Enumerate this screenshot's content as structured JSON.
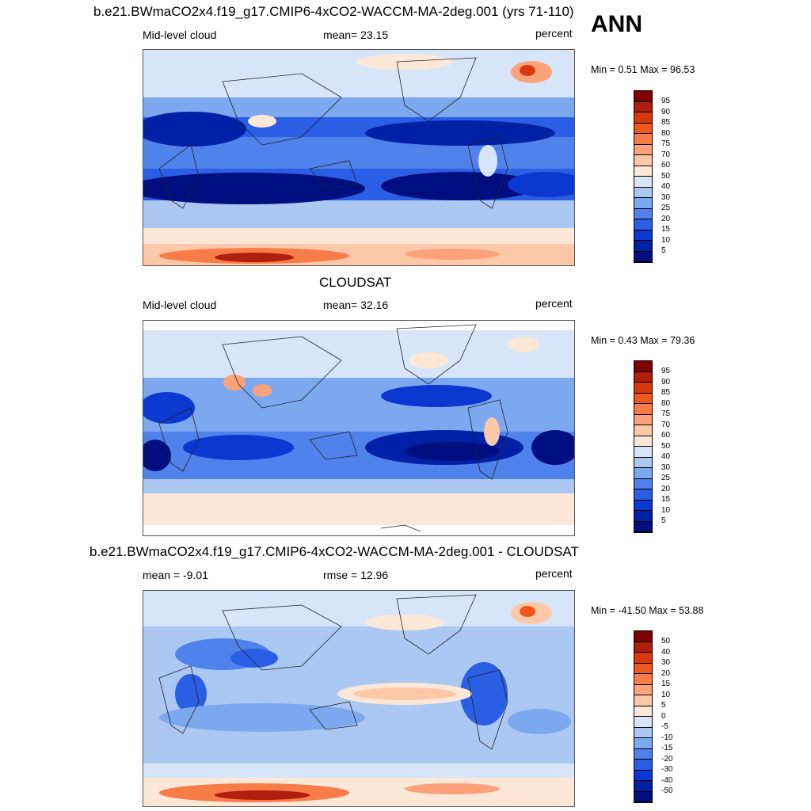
{
  "season": "ANN",
  "panels": [
    {
      "title": "b.e21.BWmaCO2x4.f19_g17.CMIP6-4xCO2-WACCM-MA-2deg.001 (yrs 71-110)",
      "left_label": "Mid-level cloud",
      "center_label": "mean=  23.15",
      "units": "percent",
      "minmax": "Min =   0.51 Max =  96.53",
      "colorbar_labels": [
        "95",
        "90",
        "85",
        "80",
        "75",
        "70",
        "60",
        "50",
        "40",
        "30",
        "25",
        "20",
        "15",
        "10",
        "5"
      ]
    },
    {
      "title": "CLOUDSAT",
      "left_label": "Mid-level cloud",
      "center_label": "mean=  32.16",
      "units": "percent",
      "minmax": "Min =   0.43 Max =  79.36",
      "colorbar_labels": [
        "95",
        "90",
        "85",
        "80",
        "75",
        "70",
        "60",
        "50",
        "40",
        "30",
        "25",
        "20",
        "15",
        "10",
        "5"
      ]
    },
    {
      "title": "b.e21.BWmaCO2x4.f19_g17.CMIP6-4xCO2-WACCM-MA-2deg.001 - CLOUDSAT",
      "left_label": "mean =  -9.01",
      "center_label": "rmse =  12.96",
      "units": "percent",
      "minmax": "Min = -41.50 Max =  53.88",
      "colorbar_labels": [
        "50",
        "40",
        "30",
        "20",
        "15",
        "10",
        "5",
        "0",
        "-5",
        "-10",
        "-15",
        "-20",
        "-30",
        "-40",
        "-50"
      ]
    }
  ],
  "colors": {
    "scale": [
      "#800000",
      "#b01e0e",
      "#d9380f",
      "#f1561e",
      "#f77c47",
      "#fba27a",
      "#fdc8a8",
      "#fde8d8",
      "#d6e6f8",
      "#aac8f2",
      "#7ba8ee",
      "#4f82ea",
      "#2a5ee4",
      "#0b38d0",
      "#0020a6",
      "#000e80"
    ]
  }
}
